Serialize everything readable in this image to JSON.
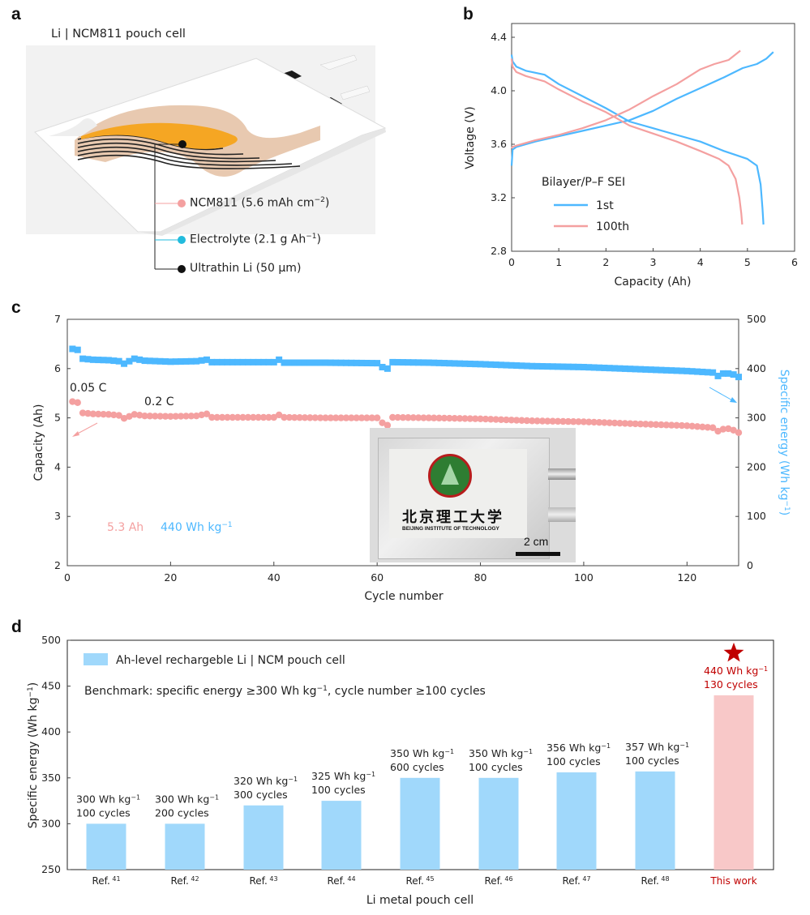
{
  "figure": {
    "panel_letters": [
      "a",
      "b",
      "c",
      "d"
    ]
  },
  "colors": {
    "blue": "#4db8ff",
    "pink": "#f4a0a0",
    "bar_blue": "#a0d8fb",
    "bar_pink": "#f8c8c8",
    "red": "#c00000",
    "orange": "#f5a623",
    "teal": "#22bbdd"
  },
  "panel_a": {
    "title": "Li | NCM811 pouch cell",
    "callouts": [
      {
        "label": "NCM811 (5.6 mAh cm",
        "sup": "−2",
        "tail": ")",
        "dot": "pink"
      },
      {
        "label": "Electrolyte (2.1 g Ah",
        "sup": "−1",
        "tail": ")",
        "dot": "teal"
      },
      {
        "label": "Ultrathin Li (50 µm)",
        "sup": "",
        "tail": "",
        "dot": "black"
      }
    ]
  },
  "chart_data": [
    {
      "panel": "b",
      "type": "line",
      "title": "",
      "xlabel": "Capacity (Ah)",
      "ylabel": "Voltage (V)",
      "xlim": [
        0,
        6
      ],
      "ylim": [
        2.8,
        4.5
      ],
      "xticks": [
        "0",
        "1",
        "2",
        "3",
        "4",
        "5",
        "6"
      ],
      "yticks": [
        "2.8",
        "3.2",
        "3.6",
        "4.0",
        "4.4"
      ],
      "legend": {
        "title": "Bilayer/P–F SEI",
        "placement": "lower-left"
      },
      "series": [
        {
          "name": "1st",
          "color": "blue",
          "charge": {
            "x": [
              0,
              0.02,
              0.1,
              0.5,
              1.0,
              1.5,
              2.0,
              2.5,
              3.0,
              3.5,
              4.0,
              4.5,
              4.9,
              5.2,
              5.4,
              5.55
            ],
            "y": [
              3.44,
              3.56,
              3.58,
              3.62,
              3.66,
              3.7,
              3.74,
              3.78,
              3.85,
              3.94,
              4.02,
              4.1,
              4.17,
              4.2,
              4.24,
              4.29
            ]
          },
          "discharge": {
            "x": [
              0,
              0.02,
              0.1,
              0.3,
              0.7,
              1.0,
              1.5,
              2.0,
              2.5,
              3.0,
              3.5,
              4.0,
              4.5,
              5.0,
              5.2,
              5.28,
              5.32,
              5.34
            ],
            "y": [
              4.27,
              4.22,
              4.18,
              4.15,
              4.12,
              4.05,
              3.96,
              3.87,
              3.77,
              3.72,
              3.67,
              3.62,
              3.55,
              3.49,
              3.44,
              3.3,
              3.12,
              3.0
            ]
          }
        },
        {
          "name": "100th",
          "color": "pink",
          "charge": {
            "x": [
              0,
              0.02,
              0.1,
              0.5,
              1.0,
              1.5,
              2.0,
              2.5,
              3.0,
              3.5,
              4.0,
              4.3,
              4.6,
              4.85
            ],
            "y": [
              3.57,
              3.58,
              3.59,
              3.63,
              3.67,
              3.72,
              3.78,
              3.86,
              3.96,
              4.05,
              4.16,
              4.2,
              4.23,
              4.3
            ]
          },
          "discharge": {
            "x": [
              0,
              0.02,
              0.1,
              0.3,
              0.7,
              1.0,
              1.5,
              2.0,
              2.5,
              3.0,
              3.5,
              4.0,
              4.4,
              4.6,
              4.75,
              4.83,
              4.87,
              4.89
            ],
            "y": [
              4.24,
              4.18,
              4.14,
              4.11,
              4.07,
              4.01,
              3.92,
              3.84,
              3.74,
              3.68,
              3.62,
              3.55,
              3.49,
              3.44,
              3.34,
              3.2,
              3.08,
              3.0
            ]
          }
        }
      ]
    },
    {
      "panel": "c",
      "type": "scatter",
      "title": "",
      "xlabel": "Cycle number",
      "ylabel": "Capacity (Ah)",
      "y2label": "Specific energy (Wh kg",
      "y2label_sup": "−1",
      "y2label_tail": ")",
      "xlim": [
        0,
        130
      ],
      "ylim": [
        2,
        7
      ],
      "y2lim": [
        0,
        500
      ],
      "xticks": [
        "0",
        "20",
        "40",
        "60",
        "80",
        "100",
        "120"
      ],
      "yticks": [
        "2",
        "3",
        "4",
        "5",
        "6",
        "7"
      ],
      "y2ticks": [
        "0",
        "100",
        "200",
        "300",
        "400",
        "500"
      ],
      "annotations": [
        "0.05 C",
        "0.2 C",
        "5.3 Ah",
        "440 Wh kg",
        "2 cm"
      ],
      "inset": {
        "caption_cn": "北京理工大学",
        "caption_en": "BEIJING INSTITUTE OF TECHNOLOGY",
        "scale_bar": "2 cm"
      },
      "series": [
        {
          "name": "Capacity",
          "axis": "left",
          "color": "pink",
          "marker": "circle",
          "x": [
            1,
            2,
            3,
            5,
            8,
            10,
            11,
            13,
            15,
            20,
            25,
            27,
            28,
            35,
            40,
            41,
            42,
            50,
            60,
            61,
            62,
            63,
            70,
            80,
            90,
            100,
            110,
            120,
            125,
            126,
            127,
            128,
            129,
            130
          ],
          "y": [
            5.33,
            5.31,
            5.1,
            5.08,
            5.07,
            5.05,
            4.99,
            5.07,
            5.04,
            5.03,
            5.04,
            5.08,
            5.01,
            5.01,
            5.01,
            5.06,
            5.01,
            5.0,
            5.0,
            4.9,
            4.85,
            5.01,
            5.0,
            4.98,
            4.94,
            4.92,
            4.88,
            4.84,
            4.8,
            4.73,
            4.77,
            4.78,
            4.75,
            4.7
          ]
        },
        {
          "name": "Specific energy",
          "axis": "right",
          "color": "blue",
          "marker": "square",
          "x": [
            1,
            2,
            3,
            5,
            8,
            10,
            11,
            13,
            15,
            20,
            25,
            27,
            28,
            35,
            40,
            41,
            42,
            50,
            60,
            61,
            62,
            63,
            70,
            80,
            90,
            100,
            110,
            120,
            125,
            126,
            127,
            128,
            129,
            130
          ],
          "y": [
            440,
            438,
            420,
            418,
            417,
            415,
            410,
            420,
            416,
            414,
            415,
            418,
            413,
            413,
            413,
            418,
            412,
            412,
            411,
            403,
            400,
            413,
            412,
            409,
            405,
            403,
            399,
            395,
            392,
            385,
            390,
            390,
            388,
            383
          ]
        }
      ]
    },
    {
      "panel": "d",
      "type": "bar",
      "title": "",
      "xlabel": "Li metal pouch cell",
      "ylabel": "Specific energy (Wh kg",
      "ylabel_sup": "−1",
      "ylabel_tail": ")",
      "ylim": [
        250,
        500
      ],
      "yticks": [
        "250",
        "300",
        "350",
        "400",
        "450",
        "500"
      ],
      "legend": {
        "label": "Ah-level rechargeble Li | NCM pouch cell",
        "placement": "top-left"
      },
      "benchmark_text": "Benchmark: specific energy ≥300 Wh kg",
      "benchmark_sup": "−1",
      "benchmark_tail": ", cycle number ≥100 cycles",
      "categories": [
        {
          "ref": "Ref.",
          "num": "41"
        },
        {
          "ref": "Ref.",
          "num": "42"
        },
        {
          "ref": "Ref.",
          "num": "43"
        },
        {
          "ref": "Ref.",
          "num": "44"
        },
        {
          "ref": "Ref.",
          "num": "45"
        },
        {
          "ref": "Ref.",
          "num": "46"
        },
        {
          "ref": "Ref.",
          "num": "47"
        },
        {
          "ref": "Ref.",
          "num": "48"
        },
        {
          "ref": "This work",
          "num": ""
        }
      ],
      "values": [
        300,
        300,
        320,
        325,
        350,
        350,
        356,
        357,
        440
      ],
      "cycles": [
        100,
        200,
        300,
        100,
        600,
        100,
        100,
        100,
        130
      ],
      "unit": "Wh kg",
      "unit_sup": "−1",
      "cycles_suffix": "cycles",
      "highlight_index": 8,
      "highlight_marker": "star"
    }
  ]
}
